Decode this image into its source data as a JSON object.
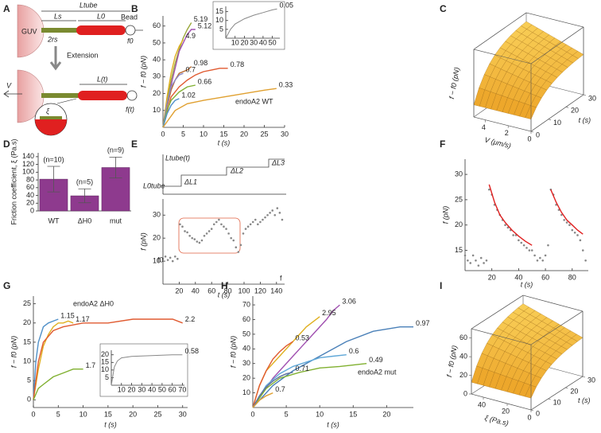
{
  "schematic": {
    "panel": "A",
    "guv": "GUV",
    "l_tube": "Ltube",
    "l_s": "Ls",
    "l_0": "L0",
    "bead": "Bead",
    "two_rs": "2rs",
    "f0": "f0",
    "extension": "Extension",
    "v": "V",
    "l_t": "L(t)",
    "f_t": "f(t)",
    "xi": "ξ"
  },
  "step_diagram": {
    "l_tube_t": "Ltube(t)",
    "l0_tube": "L0tube",
    "dl1": "ΔL1",
    "dl2": "ΔL2",
    "dl3": "ΔL3"
  },
  "chart_data": [
    {
      "type": "line",
      "panel": "B",
      "xlabel": "t (s)",
      "ylabel": "f − f0 (pN)",
      "xlim": [
        0,
        30
      ],
      "ylim": [
        0,
        66
      ],
      "xticks": [
        0,
        5,
        10,
        15,
        20,
        25,
        30
      ],
      "yticks": [
        10,
        20,
        30,
        40,
        50,
        60
      ],
      "annotations": [
        {
          "text": "endoA2 WT",
          "color": "#222"
        }
      ],
      "series": [
        {
          "name": "5.19",
          "color": "#9aa83a",
          "x": [
            0,
            1,
            2,
            3,
            4,
            5,
            6,
            7
          ],
          "values": [
            0,
            15,
            28,
            38,
            46,
            53,
            58,
            62
          ]
        },
        {
          "name": "5.12",
          "color": "#a050b0",
          "x": [
            0,
            2,
            4,
            6,
            7,
            8
          ],
          "values": [
            0,
            25,
            45,
            55,
            58,
            58
          ]
        },
        {
          "name": "4.9",
          "color": "#e0b020",
          "x": [
            0,
            1,
            2,
            3,
            4,
            5
          ],
          "values": [
            0,
            18,
            32,
            42,
            48,
            52
          ]
        },
        {
          "name": "0.98",
          "color": "#b86a30",
          "x": [
            0,
            1,
            2,
            3,
            4,
            6,
            7
          ],
          "values": [
            0,
            12,
            22,
            28,
            32,
            34,
            36
          ]
        },
        {
          "name": "0.7",
          "color": "#8a8ac8",
          "x": [
            0,
            1,
            2,
            3,
            4,
            5
          ],
          "values": [
            0,
            14,
            24,
            28,
            31,
            32
          ]
        },
        {
          "name": "0.78",
          "color": "#e05a30",
          "x": [
            0,
            2,
            4,
            6,
            8,
            10,
            12,
            14,
            16
          ],
          "values": [
            0,
            18,
            24,
            28,
            31,
            33,
            34,
            35,
            35
          ]
        },
        {
          "name": "0.66",
          "color": "#80b030",
          "x": [
            0,
            1,
            2,
            4,
            6,
            8
          ],
          "values": [
            0,
            10,
            16,
            21,
            24,
            25
          ]
        },
        {
          "name": "1.02",
          "color": "#5090c8",
          "x": [
            0,
            1,
            2,
            3,
            4
          ],
          "values": [
            0,
            8,
            13,
            16,
            17
          ]
        },
        {
          "name": "0.33",
          "color": "#e0a030",
          "x": [
            0,
            3,
            6,
            10,
            15,
            20,
            25,
            28
          ],
          "values": [
            0,
            10,
            14,
            16,
            18,
            20,
            22,
            23
          ]
        }
      ],
      "inset": {
        "xlim": [
          0,
          58
        ],
        "ylim": [
          0,
          18
        ],
        "xticks": [
          10,
          20,
          30,
          40,
          50
        ],
        "yticks": [
          5,
          10,
          15
        ],
        "series": [
          {
            "name": "0.05",
            "color": "#888888",
            "x": [
              0,
              5,
              10,
              20,
              30,
              40,
              50,
              55
            ],
            "values": [
              0,
              5,
              8,
              11,
              13,
              14.5,
              16,
              16.5
            ]
          }
        ]
      }
    },
    {
      "type": "surface",
      "panel": "C",
      "xlabel": "V (μm/s)",
      "ylabel": "t (s)",
      "zlabel": "f − f0 (pN)",
      "xlim": [
        0,
        5
      ],
      "xticks": [
        0,
        2,
        4
      ],
      "ylim": [
        0,
        30
      ],
      "yticks": [
        0,
        10,
        20,
        30
      ]
    },
    {
      "type": "bar",
      "panel": "D",
      "ylabel": "Friction coefficient, ξ (Pa.s)",
      "categories": [
        "WT",
        "ΔH0",
        "mut"
      ],
      "values": [
        82,
        39,
        112
      ],
      "errors": [
        33,
        18,
        27
      ],
      "n_labels": [
        "(n=10)",
        "(n=5)",
        "(n=9)"
      ],
      "color": "#8e3a8e",
      "ylim": [
        0,
        150
      ],
      "yticks": [
        0,
        20,
        40,
        60,
        80,
        100,
        120,
        140
      ]
    },
    {
      "type": "scatter",
      "panel": "E",
      "xlabel": "t (s)",
      "ylabel": "f (pN)",
      "xlim": [
        0,
        150
      ],
      "ylim": [
        0,
        37
      ],
      "xticks": [
        20,
        40,
        60,
        80,
        100,
        120,
        140
      ],
      "yticks": [
        10,
        20,
        30
      ],
      "annotations": [
        {
          "text": "f0",
          "color": "#c8a800"
        },
        {
          "text": "f",
          "color": "#555555"
        }
      ],
      "series": [
        {
          "color": "#888888",
          "mode": "markers",
          "x": [
            0,
            3,
            6,
            9,
            12,
            15,
            18,
            21,
            24,
            27,
            30,
            33,
            36,
            39,
            42,
            45,
            48,
            51,
            54,
            57,
            60,
            63,
            66,
            69,
            72,
            75,
            78,
            81,
            84,
            87,
            90,
            93,
            96,
            99,
            102,
            105,
            108,
            111,
            114,
            117,
            120,
            123,
            126,
            129,
            132,
            135,
            138,
            141,
            144,
            147
          ],
          "values": [
            11,
            12,
            10.5,
            11.5,
            10,
            12,
            11,
            26,
            25,
            23,
            22.5,
            21,
            20,
            19.5,
            18.5,
            18,
            19,
            21,
            22,
            23,
            24,
            26,
            27,
            28,
            26,
            25,
            24,
            22,
            20,
            19,
            16,
            14,
            17,
            22,
            24,
            25,
            26,
            27,
            28,
            26,
            27,
            28,
            29,
            30,
            31,
            32,
            30,
            33,
            31,
            28
          ]
        }
      ]
    },
    {
      "type": "scatter",
      "panel": "F",
      "xlabel": "t (s)",
      "ylabel": "f (pN)",
      "xlim": [
        0,
        92
      ],
      "ylim": [
        11,
        33
      ],
      "xticks": [
        20,
        40,
        60,
        80
      ],
      "yticks": [
        15,
        20,
        25,
        30
      ],
      "series": [
        {
          "color": "#888888",
          "mode": "markers",
          "x": [
            0,
            2,
            4,
            6,
            8,
            10,
            12,
            14,
            16,
            18,
            20,
            22,
            24,
            26,
            28,
            30,
            32,
            34,
            36,
            38,
            40,
            42,
            44,
            46,
            48,
            50,
            52,
            54,
            56,
            58,
            60,
            62,
            64,
            66,
            68,
            70,
            72,
            74,
            76,
            78,
            80,
            82,
            84,
            86,
            88,
            90
          ],
          "values": [
            14,
            13,
            12.5,
            14,
            13,
            12,
            13.5,
            12.5,
            13,
            27,
            26,
            24,
            23,
            22,
            21,
            20,
            19.5,
            19,
            18,
            18,
            17,
            16.5,
            16,
            15.5,
            15,
            15,
            14,
            13,
            13.5,
            13,
            14,
            16,
            27,
            26,
            24,
            23,
            22,
            21,
            20.5,
            20,
            19,
            18.5,
            18,
            17,
            15,
            13
          ]
        },
        {
          "color": "#e02020",
          "x": [
            18,
            22,
            26,
            30,
            35,
            40,
            45,
            50
          ],
          "values": [
            28,
            24.5,
            22,
            20.5,
            19,
            17.8,
            16.8,
            16
          ]
        },
        {
          "color": "#e02020",
          "x": [
            64,
            68,
            72,
            76,
            80,
            84,
            88
          ],
          "values": [
            27,
            24.5,
            22.5,
            21,
            20,
            19,
            18.2
          ]
        }
      ]
    },
    {
      "type": "line",
      "panel": "G",
      "xlabel": "t (s)",
      "ylabel": "f − f0 (pN)",
      "xlim": [
        0,
        31
      ],
      "ylim": [
        -2,
        27
      ],
      "xticks": [
        0,
        5,
        10,
        15,
        20,
        25,
        30
      ],
      "yticks": [
        0,
        5,
        10,
        15,
        20,
        25
      ],
      "annotations": [
        {
          "text": "endoA2 ΔH0",
          "color": "#222"
        }
      ],
      "series": [
        {
          "name": "1.15",
          "color": "#5090c8",
          "x": [
            0,
            0.5,
            1,
            2,
            3,
            4,
            5
          ],
          "values": [
            0,
            10,
            15,
            19,
            20,
            20.5,
            21
          ]
        },
        {
          "name": "1.17",
          "color": "#e0b020",
          "x": [
            0,
            1,
            2,
            3,
            4,
            5,
            6,
            7,
            8
          ],
          "values": [
            0,
            8,
            14,
            17,
            19,
            20,
            20,
            20.5,
            20
          ]
        },
        {
          "name": "2.2",
          "color": "#e05a30",
          "x": [
            0,
            1,
            2,
            4,
            6,
            10,
            15,
            20,
            25,
            28,
            30
          ],
          "values": [
            0,
            10,
            15,
            18,
            19,
            20,
            20,
            21,
            21,
            21,
            20
          ]
        },
        {
          "name": "1.7",
          "color": "#80b030",
          "x": [
            0,
            1,
            2,
            4,
            6,
            8,
            10
          ],
          "values": [
            0,
            3,
            4,
            6,
            7,
            8,
            8
          ]
        }
      ],
      "inset": {
        "xlim": [
          0,
          72
        ],
        "ylim": [
          0,
          23
        ],
        "xticks": [
          10,
          20,
          30,
          40,
          50,
          60,
          70
        ],
        "yticks": [
          5,
          10,
          15,
          20
        ],
        "series": [
          {
            "name": "0.58",
            "color": "#888888",
            "x": [
              0,
              3,
              6,
              10,
              20,
              40,
              60,
              70
            ],
            "values": [
              0,
              12,
              16,
              18,
              19,
              19.5,
              20,
              20
            ]
          }
        ]
      }
    },
    {
      "type": "line",
      "panel": "H",
      "xlabel": "t (s)",
      "ylabel": "f − f0 (pN)",
      "xlim": [
        0,
        24
      ],
      "ylim": [
        0,
        76
      ],
      "xticks": [
        0,
        5,
        10,
        15,
        20
      ],
      "yticks": [
        10,
        20,
        30,
        40,
        50,
        60,
        70
      ],
      "annotations": [
        {
          "text": "endoA2 mut",
          "color": "#222"
        }
      ],
      "series": [
        {
          "name": "3.06",
          "color": "#a050b0",
          "x": [
            0,
            3,
            6,
            9,
            11,
            12,
            13
          ],
          "values": [
            0,
            20,
            35,
            50,
            60,
            66,
            70
          ]
        },
        {
          "name": "2.95",
          "color": "#e0b020",
          "x": [
            0,
            1,
            2,
            4,
            6,
            8,
            10
          ],
          "values": [
            0,
            15,
            25,
            35,
            45,
            55,
            62
          ]
        },
        {
          "name": "0.97",
          "color": "#4a80b8",
          "x": [
            0,
            3,
            6,
            10,
            14,
            18,
            22,
            24
          ],
          "values": [
            0,
            15,
            25,
            35,
            45,
            52,
            55,
            55
          ]
        },
        {
          "name": "0.53",
          "color": "#e05a30",
          "x": [
            0,
            1,
            2,
            3,
            4,
            5,
            6
          ],
          "values": [
            0,
            15,
            25,
            33,
            38,
            42,
            45
          ]
        },
        {
          "name": "0.6",
          "color": "#60a8d8",
          "x": [
            0,
            2,
            4,
            6,
            8,
            10,
            12,
            14
          ],
          "values": [
            0,
            15,
            23,
            28,
            31,
            34,
            35,
            36
          ]
        },
        {
          "name": "0.49",
          "color": "#80b030",
          "x": [
            0,
            2,
            4,
            7,
            10,
            13,
            15,
            17
          ],
          "values": [
            0,
            13,
            20,
            24,
            27,
            28,
            29,
            30
          ]
        },
        {
          "name": "0.71",
          "color": "#6070a0",
          "x": [
            0,
            1,
            2,
            3,
            4,
            5,
            6
          ],
          "values": [
            0,
            8,
            14,
            18,
            21,
            23,
            24
          ]
        },
        {
          "name": "0.7",
          "color": "#e0a030",
          "x": [
            0,
            1,
            2,
            3
          ],
          "values": [
            0,
            5,
            8,
            10
          ]
        }
      ]
    },
    {
      "type": "surface",
      "panel": "I",
      "xlabel": "ξ (Pa.s)",
      "ylabel": "t (s)",
      "zlabel": "f − f0 (pN)",
      "xlim": [
        0,
        50
      ],
      "xticks": [
        0,
        20,
        40
      ],
      "ylim": [
        0,
        30
      ],
      "yticks": [
        0,
        10,
        20,
        30
      ],
      "zlim": [
        0,
        70
      ],
      "zticks": [
        0,
        20,
        40,
        60
      ]
    }
  ]
}
